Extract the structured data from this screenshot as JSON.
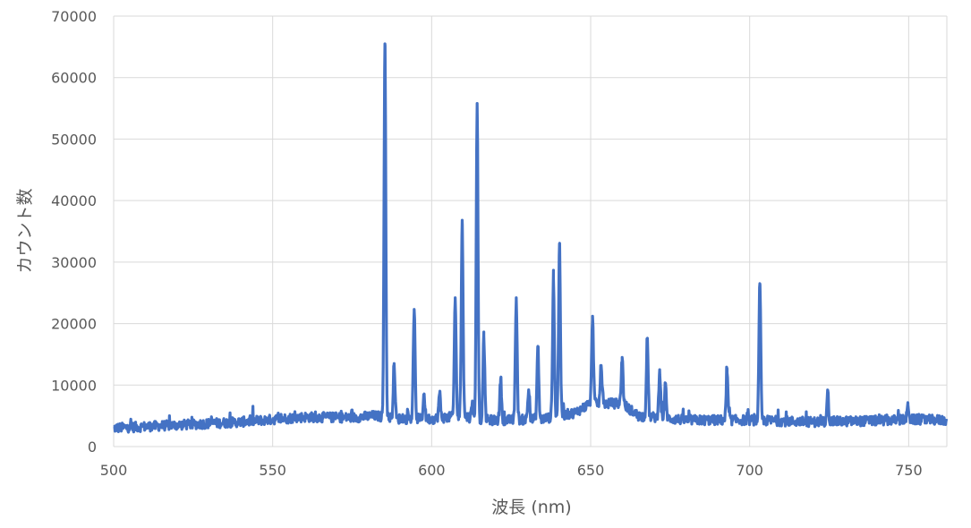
{
  "chart_data": {
    "type": "line",
    "title": "",
    "xlabel": "波長 (nm)",
    "ylabel": "カウント数",
    "xlim": [
      500,
      762
    ],
    "ylim": [
      0,
      70000
    ],
    "x_ticks": [
      500,
      550,
      600,
      650,
      700,
      750
    ],
    "y_ticks": [
      0,
      10000,
      20000,
      30000,
      40000,
      50000,
      60000,
      70000
    ],
    "grid": true,
    "legend": "none",
    "line_color": "#4472C4",
    "baseline": [
      [
        500,
        3000
      ],
      [
        520,
        3500
      ],
      [
        540,
        4000
      ],
      [
        560,
        4800
      ],
      [
        575,
        4700
      ],
      [
        582,
        5000
      ],
      [
        590,
        4500
      ],
      [
        600,
        4500
      ],
      [
        610,
        5000
      ],
      [
        615,
        4300
      ],
      [
        625,
        4300
      ],
      [
        635,
        4500
      ],
      [
        645,
        5500
      ],
      [
        650,
        7000
      ],
      [
        660,
        7000
      ],
      [
        665,
        5000
      ],
      [
        680,
        4300
      ],
      [
        700,
        4300
      ],
      [
        720,
        4000
      ],
      [
        740,
        4200
      ],
      [
        750,
        4400
      ],
      [
        762,
        4300
      ]
    ],
    "peaks": [
      {
        "x": 585.3,
        "y": 65500
      },
      {
        "x": 588.2,
        "y": 13500
      },
      {
        "x": 594.5,
        "y": 22300
      },
      {
        "x": 597.6,
        "y": 8500
      },
      {
        "x": 602.5,
        "y": 8600
      },
      {
        "x": 607.4,
        "y": 24200
      },
      {
        "x": 609.6,
        "y": 36800
      },
      {
        "x": 612.8,
        "y": 7000
      },
      {
        "x": 614.3,
        "y": 55800
      },
      {
        "x": 616.4,
        "y": 18000
      },
      {
        "x": 621.7,
        "y": 11000
      },
      {
        "x": 626.6,
        "y": 24200
      },
      {
        "x": 630.5,
        "y": 9200
      },
      {
        "x": 633.4,
        "y": 16300
      },
      {
        "x": 638.3,
        "y": 27300
      },
      {
        "x": 640.2,
        "y": 33000
      },
      {
        "x": 650.6,
        "y": 21200
      },
      {
        "x": 653.3,
        "y": 13200
      },
      {
        "x": 659.9,
        "y": 14500
      },
      {
        "x": 667.8,
        "y": 17600
      },
      {
        "x": 671.7,
        "y": 12500
      },
      {
        "x": 673.5,
        "y": 10000
      },
      {
        "x": 692.9,
        "y": 12000
      },
      {
        "x": 703.2,
        "y": 26500
      },
      {
        "x": 724.5,
        "y": 9200
      },
      {
        "x": 749.8,
        "y": 6700
      }
    ]
  }
}
